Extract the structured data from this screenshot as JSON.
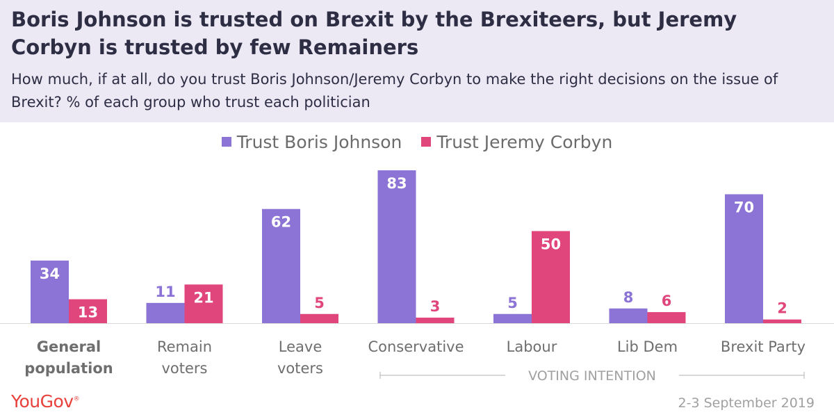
{
  "header": {
    "title": "Boris Johnson is trusted on Brexit by the Brexiteers, but Jeremy Corbyn is trusted by few Remainers",
    "subtitle": "How much, if at all, do you trust Boris Johnson/Jeremy Corbyn to make the right decisions on the issue of Brexit? % of each group who trust each politician"
  },
  "footer": {
    "brand": "YouGov",
    "trademark": "®",
    "date": "2-3 September 2019"
  },
  "chart_data": {
    "type": "bar",
    "title": "Boris Johnson is trusted on Brexit by the Brexiteers, but Jeremy Corbyn is trusted by few Remainers",
    "xlabel": "",
    "ylabel": "",
    "ylim": [
      0,
      100
    ],
    "categories": [
      [
        "General",
        "population"
      ],
      [
        "Remain",
        "voters"
      ],
      [
        "Leave",
        "voters"
      ],
      [
        "Conservative"
      ],
      [
        "Labour"
      ],
      [
        "Lib Dem"
      ],
      [
        "Brexit Party"
      ]
    ],
    "series": [
      {
        "name": "Trust Boris Johnson",
        "color": "#8c73d6",
        "label_color": "#ffffff",
        "values": [
          34,
          11,
          62,
          83,
          5,
          8,
          70
        ]
      },
      {
        "name": "Trust Jeremy Corbyn",
        "color": "#e0457b",
        "label_color": "#ffffff",
        "values": [
          13,
          21,
          5,
          3,
          50,
          6,
          2
        ]
      }
    ],
    "outside_label_color_series": [
      "#8c73d6",
      "#e0457b"
    ],
    "group_annotation": {
      "text": "VOTING INTENTION",
      "from_category": 3,
      "to_category": 6
    }
  }
}
